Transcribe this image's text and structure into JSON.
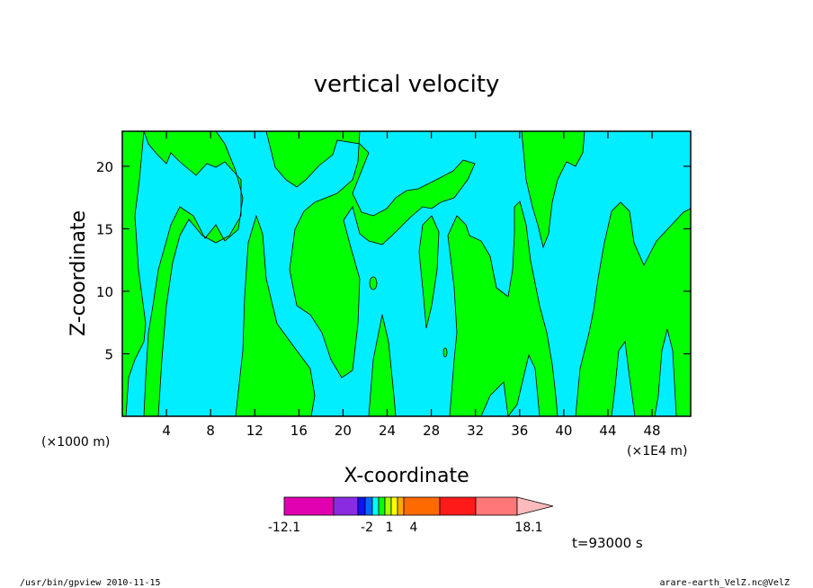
{
  "chart_data": {
    "type": "heatmap",
    "title": "vertical velocity",
    "xlabel": "X-coordinate",
    "ylabel": "Z-coordinate",
    "x_unit_left": "(×1000 m)",
    "x_unit_right": "(×1E4 m)",
    "x_ticks": [
      "4",
      "8",
      "12",
      "16",
      "20",
      "24",
      "28",
      "32",
      "36",
      "40",
      "44",
      "48"
    ],
    "y_ticks": [
      "5",
      "10",
      "15",
      "20"
    ],
    "xlim": [
      0,
      51.5
    ],
    "ylim": [
      0,
      22.8
    ],
    "time_label": "t=93000 s",
    "colorbar": {
      "levels": [
        "-12.1",
        "-2",
        "1",
        "4",
        "18.1"
      ],
      "colors": [
        "#e000b0",
        "#8a2be2",
        "#1010ff",
        "#0066ff",
        "#00ffff",
        "#00ff00",
        "#aaff00",
        "#ffff00",
        "#ffaa00",
        "#ff6a00",
        "#ff1a1a",
        "#ff7777",
        "#ffbbbb"
      ]
    },
    "field_colors": {
      "positive": "#00ff00",
      "negative": "#00eeff"
    },
    "bands": [
      {
        "x": [
          1.0,
          3.1
        ],
        "sign": "positive"
      },
      {
        "x": [
          3.1,
          10.3
        ],
        "sign": "negative"
      },
      {
        "x": [
          10.3,
          16.8
        ],
        "sign": "positive"
      },
      {
        "x": [
          16.8,
          23.0
        ],
        "sign": "negative"
      },
      {
        "x": [
          23.0,
          30.5
        ],
        "sign": "negative"
      },
      {
        "x": [
          30.5,
          37.8
        ],
        "sign": "positive"
      },
      {
        "x": [
          37.8,
          42.0
        ],
        "sign": "negative"
      },
      {
        "x": [
          42.0,
          51.5
        ],
        "sign": "positive"
      }
    ]
  },
  "footer": {
    "left": "/usr/bin/gpview  2010-11-15",
    "right": "arare-earth_VelZ.nc@VelZ"
  }
}
